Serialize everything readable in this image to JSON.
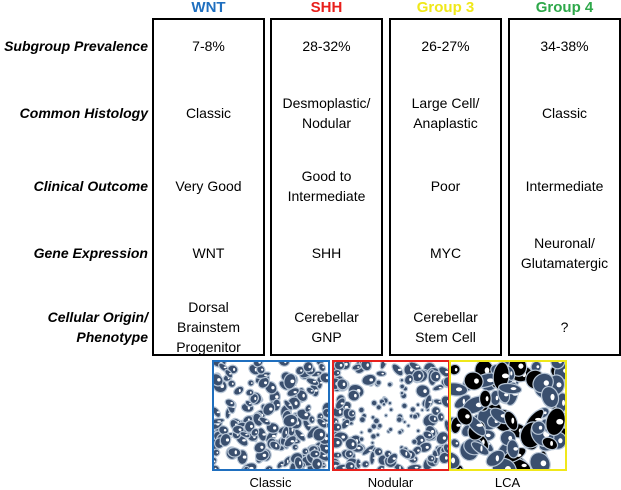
{
  "columns": [
    {
      "name": "WNT",
      "color": "#1f6fbf"
    },
    {
      "name": "SHH",
      "color": "#e8201c"
    },
    {
      "name": "Group 3",
      "color": "#f0e81a"
    },
    {
      "name": "Group 4",
      "color": "#2ea84a"
    }
  ],
  "rows": [
    {
      "label": "Subgroup Prevalence",
      "cells": [
        "7-8%",
        "28-32%",
        "26-27%",
        "34-38%"
      ]
    },
    {
      "label": "Common Histology",
      "cells": [
        "Classic",
        "Desmoplastic/\nNodular",
        "Large Cell/\nAnaplastic",
        "Classic"
      ]
    },
    {
      "label": "Clinical Outcome",
      "cells": [
        "Very Good",
        "Good to\nIntermediate",
        "Poor",
        "Intermediate"
      ]
    },
    {
      "label": "Gene Expression",
      "cells": [
        "WNT",
        "SHH",
        "MYC",
        "Neuronal/\nGlutamatergic"
      ]
    },
    {
      "label": "Cellular Origin/\nPhenotype",
      "cells": [
        "Dorsal\nBrainstem\nProgenitor",
        "Cerebellar\nGNP",
        "Cerebellar\nStem Cell",
        "?"
      ]
    }
  ],
  "images": [
    {
      "label": "Classic",
      "color": "#1f6fbf"
    },
    {
      "label": "Nodular",
      "color": "#e8201c"
    },
    {
      "label": "LCA",
      "color": "#f0e81a"
    }
  ]
}
